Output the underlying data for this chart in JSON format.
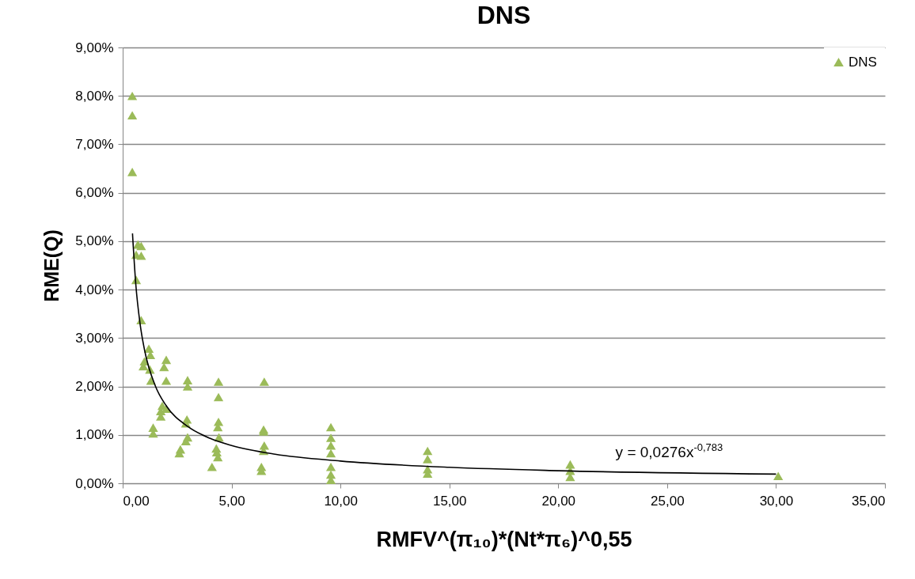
{
  "chart_data": {
    "type": "scatter",
    "title": "DNS",
    "xlabel": "RMFV^(π₁₀)*(Nt*π₆)^0,55",
    "ylabel": "RME(Q)",
    "xlim": [
      0,
      35
    ],
    "xticks": [
      {
        "value": 0,
        "label": "0,00"
      },
      {
        "value": 5,
        "label": "5,00"
      },
      {
        "value": 10,
        "label": "10,00"
      },
      {
        "value": 15,
        "label": "15,00"
      },
      {
        "value": 20,
        "label": "20,00"
      },
      {
        "value": 25,
        "label": "25,00"
      },
      {
        "value": 30,
        "label": "30,00"
      },
      {
        "value": 35,
        "label": "35,00"
      }
    ],
    "ylim": [
      0,
      9
    ],
    "yticks": [
      {
        "value": 0,
        "label": "0,00%"
      },
      {
        "value": 1,
        "label": "1,00%"
      },
      {
        "value": 2,
        "label": "2,00%"
      },
      {
        "value": 3,
        "label": "3,00%"
      },
      {
        "value": 4,
        "label": "4,00%"
      },
      {
        "value": 5,
        "label": "5,00%"
      },
      {
        "value": 6,
        "label": "6,00%"
      },
      {
        "value": 7,
        "label": "7,00%"
      },
      {
        "value": 8,
        "label": "8,00%"
      },
      {
        "value": 9,
        "label": "9,00%"
      }
    ],
    "grid": "y",
    "legend": "top right",
    "series": [
      {
        "name": "DNS",
        "color": "#9bbb59",
        "marker": "triangle",
        "x": [
          0.44,
          0.44,
          0.44,
          0.7,
          0.85,
          0.62,
          0.85,
          0.62,
          0.85,
          1.2,
          1.27,
          1.0,
          0.95,
          1.25,
          1.3,
          2.0,
          1.9,
          2.0,
          2.98,
          2.98,
          4.4,
          4.4,
          6.5,
          1.4,
          1.4,
          1.82,
          1.75,
          1.75,
          2.0,
          2.95,
          2.9,
          2.98,
          2.9,
          2.6,
          2.65,
          4.4,
          4.37,
          4.42,
          4.3,
          4.32,
          4.37,
          4.1,
          6.47,
          6.47,
          6.5,
          6.47,
          6.37,
          6.37,
          9.56,
          9.56,
          9.56,
          9.56,
          9.56,
          9.56,
          9.56,
          14.0,
          14.0,
          14.0,
          14.0,
          20.55,
          20.55,
          20.55,
          30.1
        ],
        "values": [
          8.0,
          7.6,
          6.43,
          4.93,
          4.9,
          4.72,
          4.7,
          4.2,
          3.37,
          2.78,
          2.65,
          2.52,
          2.42,
          2.35,
          2.12,
          2.55,
          2.4,
          2.12,
          2.13,
          2.0,
          2.1,
          1.78,
          2.1,
          1.15,
          1.03,
          1.6,
          1.49,
          1.38,
          1.54,
          1.32,
          1.24,
          0.95,
          0.87,
          0.62,
          0.7,
          1.27,
          1.16,
          0.95,
          0.72,
          0.64,
          0.54,
          0.34,
          1.11,
          1.07,
          0.78,
          0.67,
          0.34,
          0.26,
          1.16,
          0.94,
          0.78,
          0.62,
          0.34,
          0.18,
          0.07,
          0.67,
          0.5,
          0.29,
          0.2,
          0.39,
          0.26,
          0.13,
          0.15
        ]
      },
      {
        "type": "line",
        "color": "#000000",
        "x": [
          0.45,
          0.6,
          0.8,
          1,
          1.5,
          2,
          3,
          4,
          5,
          7,
          10,
          15,
          20,
          30
        ],
        "values": [
          5.16,
          4.12,
          3.29,
          2.76,
          2.01,
          1.6,
          1.17,
          0.93,
          0.78,
          0.6,
          0.46,
          0.33,
          0.26,
          0.19
        ]
      }
    ],
    "annotations": [
      "y = 0,0276x$^{-0,783}$"
    ]
  }
}
